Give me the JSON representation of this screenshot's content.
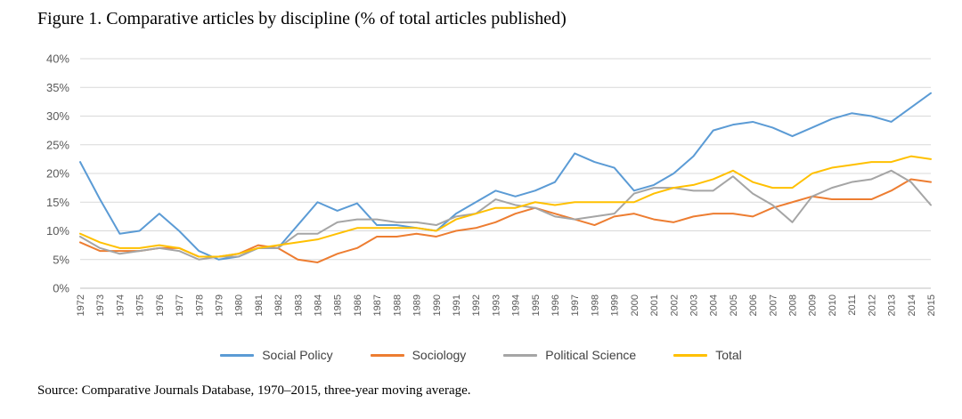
{
  "figure": {
    "title": "Figure 1. Comparative articles by discipline (% of total articles published)",
    "source": "Source: Comparative Journals Database, 1970–2015, three-year moving average."
  },
  "chart_data": {
    "type": "line",
    "title": "Figure 1. Comparative articles by discipline (% of total articles published)",
    "xlabel": "",
    "ylabel": "",
    "ylim": [
      0,
      40
    ],
    "ytick_step": 5,
    "ytick_format": "percent",
    "grid": true,
    "legend_position": "bottom",
    "x": [
      1972,
      1973,
      1974,
      1975,
      1976,
      1977,
      1978,
      1979,
      1980,
      1981,
      1982,
      1983,
      1984,
      1985,
      1986,
      1987,
      1988,
      1989,
      1990,
      1991,
      1992,
      1993,
      1994,
      1995,
      1996,
      1997,
      1998,
      1999,
      2000,
      2001,
      2002,
      2003,
      2004,
      2005,
      2006,
      2007,
      2008,
      2009,
      2010,
      2011,
      2012,
      2013,
      2014,
      2015
    ],
    "series": [
      {
        "name": "Social Policy",
        "color": "#5B9BD5",
        "values": [
          22,
          15.5,
          9.5,
          10,
          13,
          10,
          6.5,
          5,
          5.5,
          7,
          7,
          11,
          15,
          13.5,
          14.8,
          11,
          11,
          10.5,
          10,
          13,
          15,
          17,
          16,
          17,
          18.5,
          23.5,
          22,
          21,
          17,
          18,
          20,
          23,
          27.5,
          28.5,
          29,
          28,
          26.5,
          28,
          29.5,
          30.5,
          30,
          29,
          31.5,
          34
        ]
      },
      {
        "name": "Sociology",
        "color": "#ED7D31",
        "values": [
          8,
          6.5,
          6.5,
          6.5,
          7,
          7,
          5.5,
          5.5,
          6,
          7.5,
          7,
          5,
          4.5,
          6,
          7,
          9,
          9,
          9.5,
          9,
          10,
          10.5,
          11.5,
          13,
          14,
          13,
          12,
          11,
          12.5,
          13,
          12,
          11.5,
          12.5,
          13,
          13,
          12.5,
          14,
          15,
          16,
          15.5,
          15.5,
          15.5,
          17,
          19,
          18.5
        ]
      },
      {
        "name": "Political Science",
        "color": "#A5A5A5",
        "values": [
          9,
          7,
          6,
          6.5,
          7,
          6.5,
          5,
          5.5,
          5.5,
          7,
          7,
          9.5,
          9.5,
          11.5,
          12,
          12,
          11.5,
          11.5,
          11,
          12.5,
          13,
          15.5,
          14.5,
          14,
          12.5,
          12,
          12.5,
          13,
          16.5,
          17.5,
          17.5,
          17,
          17,
          19.5,
          16.5,
          14.5,
          11.5,
          16,
          17.5,
          18.5,
          19,
          20.5,
          18.5,
          14.5
        ]
      },
      {
        "name": "Total",
        "color": "#FFC000",
        "values": [
          9.5,
          8,
          7,
          7,
          7.5,
          7,
          5.5,
          5.5,
          6,
          7,
          7.5,
          8,
          8.5,
          9.5,
          10.5,
          10.5,
          10.5,
          10.5,
          10,
          12,
          13,
          14,
          14,
          15,
          14.5,
          15,
          15,
          15,
          15,
          16.5,
          17.5,
          18,
          19,
          20.5,
          18.5,
          17.5,
          17.5,
          20,
          21,
          21.5,
          22,
          22,
          23,
          22.5
        ]
      }
    ]
  }
}
